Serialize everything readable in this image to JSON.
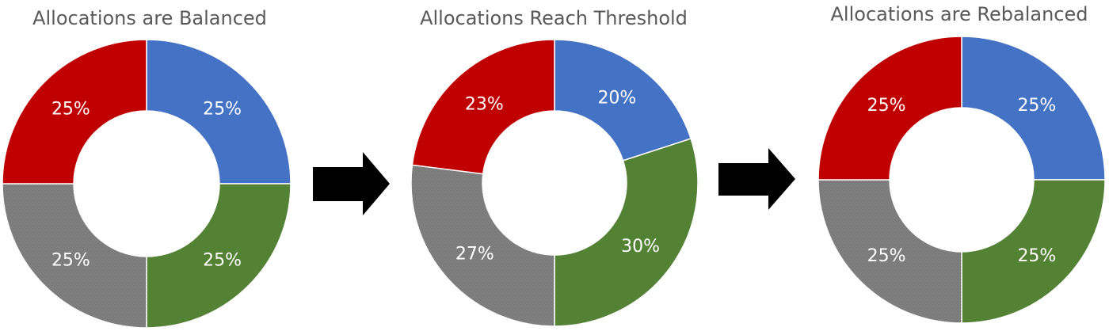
{
  "chart_data": [
    {
      "type": "pie",
      "title": "Allocations are Balanced",
      "slices": [
        {
          "label": "25%",
          "value": 25,
          "color": "#4472C4"
        },
        {
          "label": "25%",
          "value": 25,
          "color": "#548235"
        },
        {
          "label": "25%",
          "value": 25,
          "color": "#808080"
        },
        {
          "label": "25%",
          "value": 25,
          "color": "#C00000"
        }
      ]
    },
    {
      "type": "pie",
      "title": "Allocations Reach Threshold",
      "slices": [
        {
          "label": "20%",
          "value": 20,
          "color": "#4472C4"
        },
        {
          "label": "30%",
          "value": 30,
          "color": "#548235"
        },
        {
          "label": "27%",
          "value": 27,
          "color": "#808080"
        },
        {
          "label": "23%",
          "value": 23,
          "color": "#C00000"
        }
      ]
    },
    {
      "type": "pie",
      "title": "Allocations are Rebalanced",
      "slices": [
        {
          "label": "25%",
          "value": 25,
          "color": "#4472C4"
        },
        {
          "label": "25%",
          "value": 25,
          "color": "#548235"
        },
        {
          "label": "25%",
          "value": 25,
          "color": "#808080"
        },
        {
          "label": "25%",
          "value": 25,
          "color": "#C00000"
        }
      ]
    }
  ],
  "colors": {
    "arrow": "#000000",
    "title": "#595959",
    "label": "#ffffff"
  }
}
